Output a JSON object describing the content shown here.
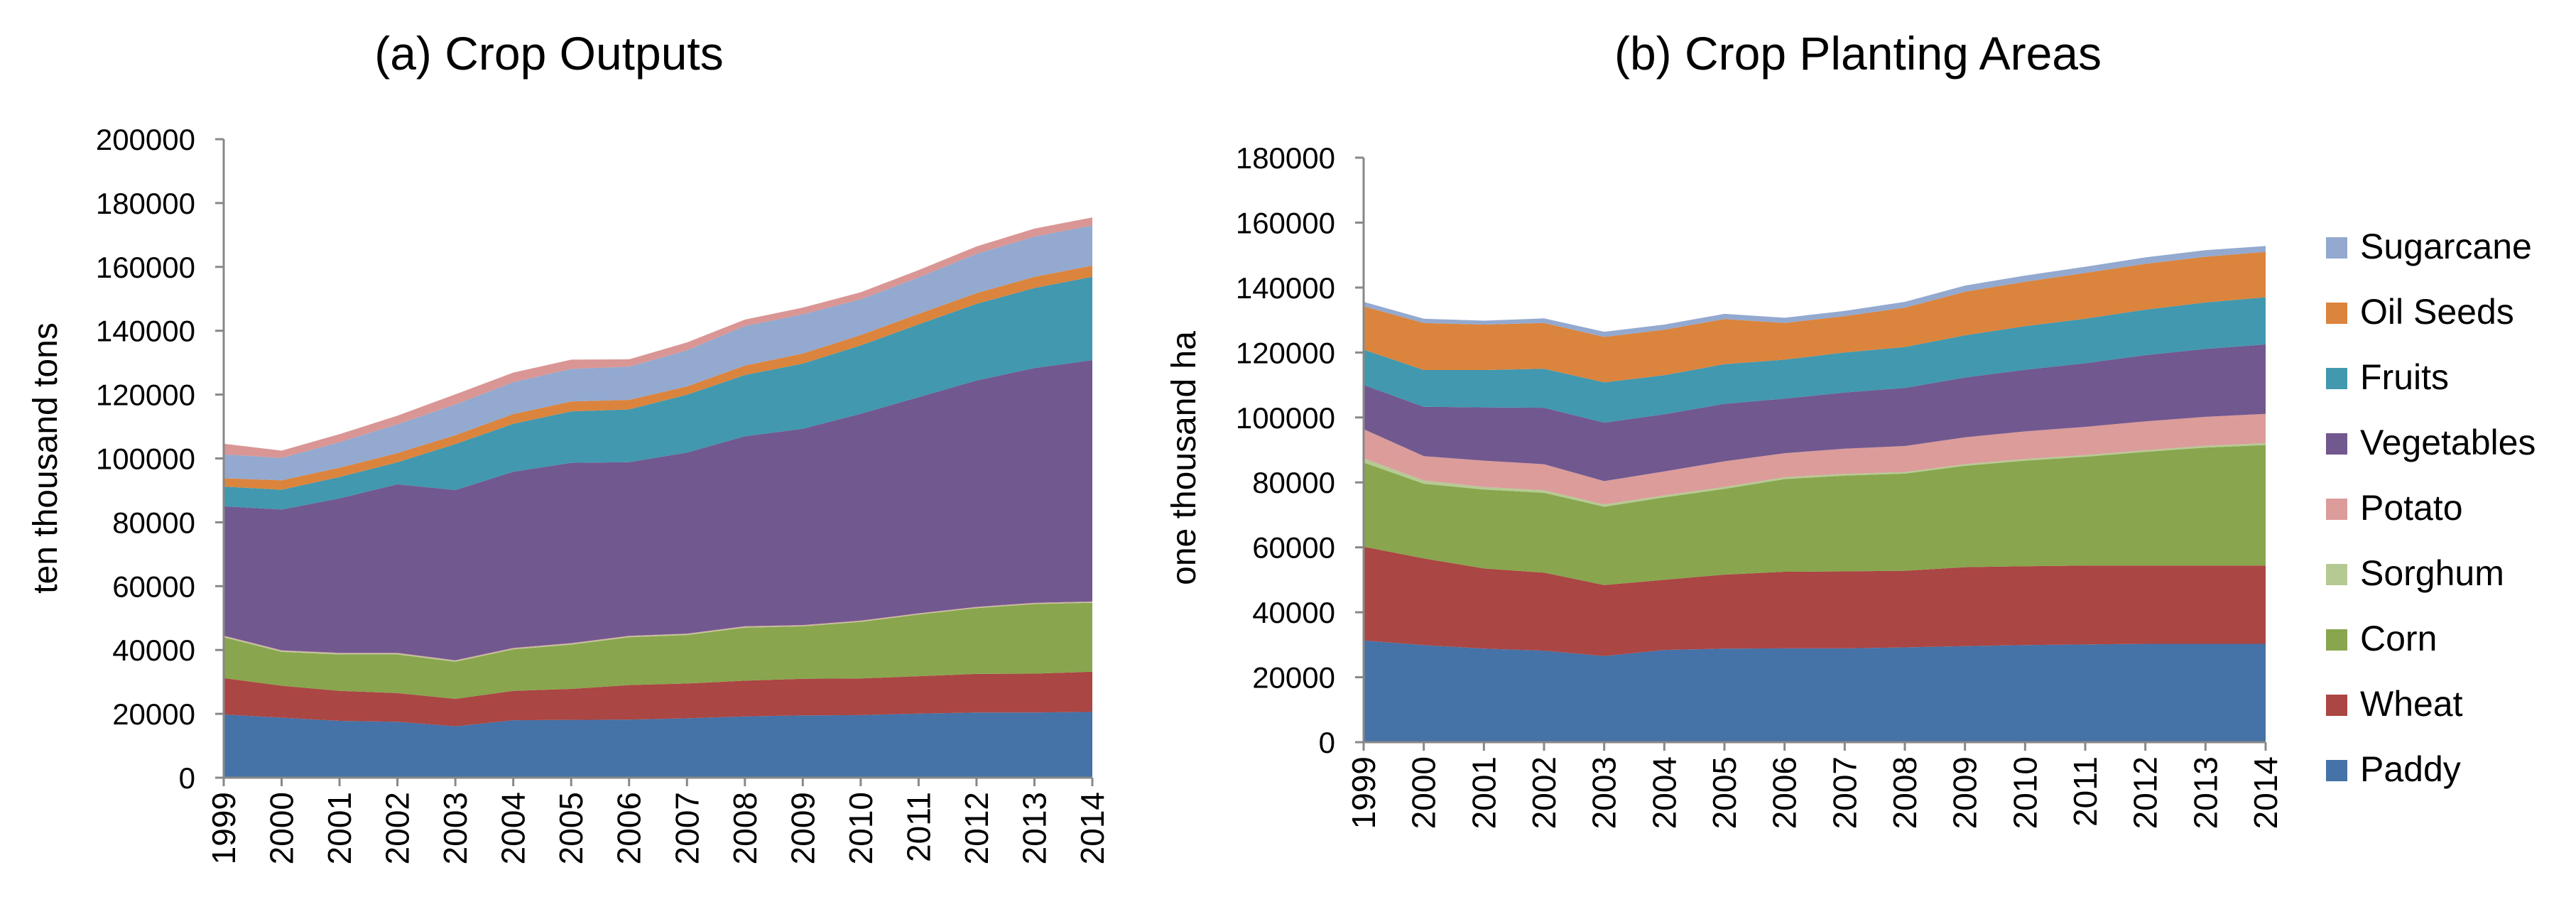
{
  "chart_data": [
    {
      "type": "area",
      "stacked": true,
      "title": "(a) Crop Outputs",
      "xlabel": "",
      "ylabel": "ten  thousand tons",
      "ylim": [
        0,
        200000
      ],
      "yticks": [
        "0",
        "20000",
        "40000",
        "60000",
        "80000",
        "100000",
        "120000",
        "140000",
        "160000",
        "180000",
        "200000"
      ],
      "categories": [
        "1999",
        "2000",
        "2001",
        "2002",
        "2003",
        "2004",
        "2005",
        "2006",
        "2007",
        "2008",
        "2009",
        "2010",
        "2011",
        "2012",
        "2013",
        "2014"
      ],
      "grid": false,
      "series": [
        {
          "name": "Paddy",
          "color": "#4572A7",
          "values": [
            19800,
            18800,
            17800,
            17500,
            16100,
            18000,
            18100,
            18200,
            18600,
            19200,
            19500,
            19600,
            20100,
            20400,
            20400,
            20600
          ]
        },
        {
          "name": "Wheat",
          "color": "#AA4643",
          "values": [
            11400,
            10000,
            9400,
            9000,
            8600,
            9200,
            9700,
            10800,
            10900,
            11200,
            11500,
            11500,
            11700,
            12100,
            12200,
            12600
          ]
        },
        {
          "name": "Corn",
          "color": "#89A54E",
          "values": [
            12800,
            10600,
            11400,
            12100,
            11600,
            13000,
            13900,
            15000,
            15200,
            16600,
            16400,
            17700,
            19300,
            20600,
            21800,
            21600
          ]
        },
        {
          "name": "Sorghum",
          "color": "#B5CA92",
          "values": [
            300,
            300,
            300,
            300,
            300,
            250,
            250,
            250,
            250,
            250,
            200,
            200,
            200,
            200,
            200,
            200
          ]
        },
        {
          "name": "Potato",
          "color": "#DB9C9A",
          "values": [
            200,
            200,
            200,
            200,
            200,
            200,
            200,
            200,
            200,
            200,
            200,
            200,
            200,
            200,
            200,
            200
          ]
        },
        {
          "name": "Vegetables",
          "color": "#71588F",
          "values": [
            40500,
            44100,
            48400,
            52800,
            53300,
            55200,
            56500,
            54400,
            56700,
            59500,
            61500,
            64800,
            67700,
            70900,
            73500,
            75600
          ]
        },
        {
          "name": "Fruits",
          "color": "#4198AF",
          "values": [
            6200,
            6200,
            6700,
            6900,
            14400,
            15000,
            16100,
            16500,
            18100,
            19200,
            20400,
            21400,
            22800,
            24000,
            25100,
            26100
          ]
        },
        {
          "name": "Oil Seeds",
          "color": "#DB843D",
          "values": [
            2600,
            2950,
            2900,
            2900,
            2800,
            3050,
            3100,
            3000,
            2600,
            2950,
            3150,
            3250,
            3300,
            3400,
            3500,
            3500
          ]
        },
        {
          "name": "Sugarcane",
          "color": "#93A9CF",
          "values": [
            7500,
            7000,
            8000,
            9000,
            9600,
            10000,
            10200,
            10400,
            11300,
            12400,
            12300,
            11200,
            11400,
            12300,
            12600,
            12600
          ]
        },
        {
          "name": "",
          "color": "#D99694",
          "values": [
            3300,
            2300,
            2500,
            2700,
            3200,
            3000,
            2900,
            2300,
            2500,
            2000,
            2100,
            2200,
            2300,
            2300,
            2500,
            2500
          ]
        }
      ]
    },
    {
      "type": "area",
      "stacked": true,
      "title": "(b) Crop Planting Areas",
      "xlabel": "",
      "ylabel": "one  thousand ha",
      "ylim": [
        0,
        180000
      ],
      "yticks": [
        "0",
        "20000",
        "40000",
        "60000",
        "80000",
        "100000",
        "120000",
        "140000",
        "160000",
        "180000"
      ],
      "categories": [
        "1999",
        "2000",
        "2001",
        "2002",
        "2003",
        "2004",
        "2005",
        "2006",
        "2007",
        "2008",
        "2009",
        "2010",
        "2011",
        "2012",
        "2013",
        "2014"
      ],
      "grid": false,
      "legend_position": "right",
      "series": [
        {
          "name": "Paddy",
          "color": "#4572A7",
          "values": [
            31300,
            29900,
            28800,
            28200,
            26500,
            28400,
            28800,
            28900,
            28900,
            29200,
            29600,
            29900,
            30100,
            30300,
            30300,
            30300
          ]
        },
        {
          "name": "Wheat",
          "color": "#AA4643",
          "values": [
            28900,
            26700,
            24700,
            24000,
            21900,
            21600,
            22800,
            23600,
            23700,
            23600,
            24300,
            24300,
            24300,
            24100,
            24100,
            24100
          ]
        },
        {
          "name": "Corn",
          "color": "#89A54E",
          "values": [
            25900,
            23000,
            24300,
            24600,
            24100,
            25400,
            26400,
            28500,
            29500,
            29900,
            31200,
            32500,
            33500,
            35000,
            36300,
            37100
          ]
        },
        {
          "name": "Sorghum",
          "color": "#B5CA92",
          "values": [
            1300,
            1000,
            800,
            800,
            700,
            600,
            600,
            600,
            500,
            500,
            500,
            500,
            500,
            500,
            600,
            600
          ]
        },
        {
          "name": "Potato",
          "color": "#DB9C9A",
          "values": [
            9000,
            7500,
            8100,
            8000,
            7200,
            7400,
            7900,
            7400,
            7800,
            8000,
            8300,
            8500,
            8700,
            8900,
            8900,
            9000
          ]
        },
        {
          "name": "Vegetables",
          "color": "#71588F",
          "values": [
            13600,
            15200,
            16400,
            17400,
            18000,
            17600,
            17700,
            16800,
            17300,
            17900,
            18400,
            19000,
            19600,
            20400,
            20900,
            21400
          ]
        },
        {
          "name": "Fruits",
          "color": "#4198AF",
          "values": [
            10900,
            11300,
            11500,
            12000,
            12400,
            12000,
            12200,
            12000,
            12300,
            12600,
            13000,
            13400,
            13700,
            14000,
            14300,
            14500
          ]
        },
        {
          "name": "Oil Seeds",
          "color": "#DB843D",
          "values": [
            13300,
            14500,
            14000,
            14100,
            14000,
            14000,
            13900,
            11300,
            11200,
            12100,
            13400,
            13700,
            14100,
            14100,
            14100,
            14000
          ]
        },
        {
          "name": "Sugarcane",
          "color": "#93A9CF",
          "values": [
            1400,
            1300,
            1200,
            1400,
            1600,
            1600,
            1600,
            1600,
            1600,
            1800,
            1900,
            1900,
            1900,
            2000,
            2000,
            1800
          ]
        }
      ]
    }
  ]
}
